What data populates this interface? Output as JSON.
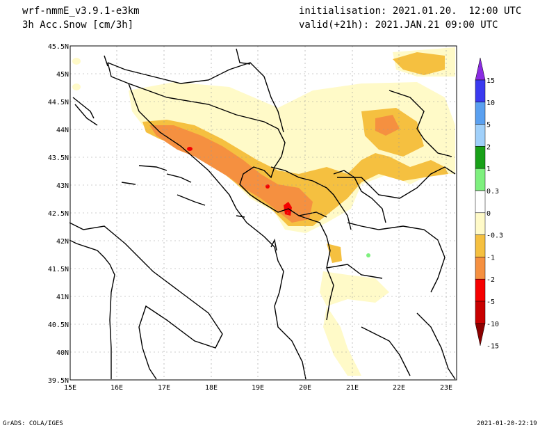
{
  "header": {
    "model": "wrf-nmmE_v3.9.1-e3km",
    "field": "3h Acc.Snow [cm/3h]",
    "init": "initialisation: 2021.01.20.  12:00 UTC",
    "valid": "valid(+21h): 2021.JAN.21 09:00 UTC"
  },
  "map": {
    "lat_labels": [
      "45.5N",
      "45N",
      "44.5N",
      "44N",
      "43.5N",
      "43N",
      "42.5N",
      "42N",
      "41.5N",
      "41N",
      "40.5N",
      "40N",
      "39.5N"
    ],
    "lon_labels": [
      "15E",
      "16E",
      "17E",
      "18E",
      "19E",
      "20E",
      "21E",
      "22E",
      "23E"
    ]
  },
  "colorbar": {
    "labels": [
      "15",
      "10",
      "5",
      "2",
      "1",
      "0.3",
      "0",
      "-0.3",
      "-1",
      "-2",
      "-5",
      "-10",
      "-15"
    ],
    "colors": [
      "#8a2be2",
      "#3a3af0",
      "#5aa0f0",
      "#a0d0fa",
      "#18a018",
      "#7ef07e",
      "#ffffff",
      "#fffac8",
      "#f5c040",
      "#f59040",
      "#f50000",
      "#c80000",
      "#8b0000"
    ]
  },
  "footer": {
    "left": "GrADS: COLA/IGES",
    "right": "2021-01-20-22:19"
  }
}
